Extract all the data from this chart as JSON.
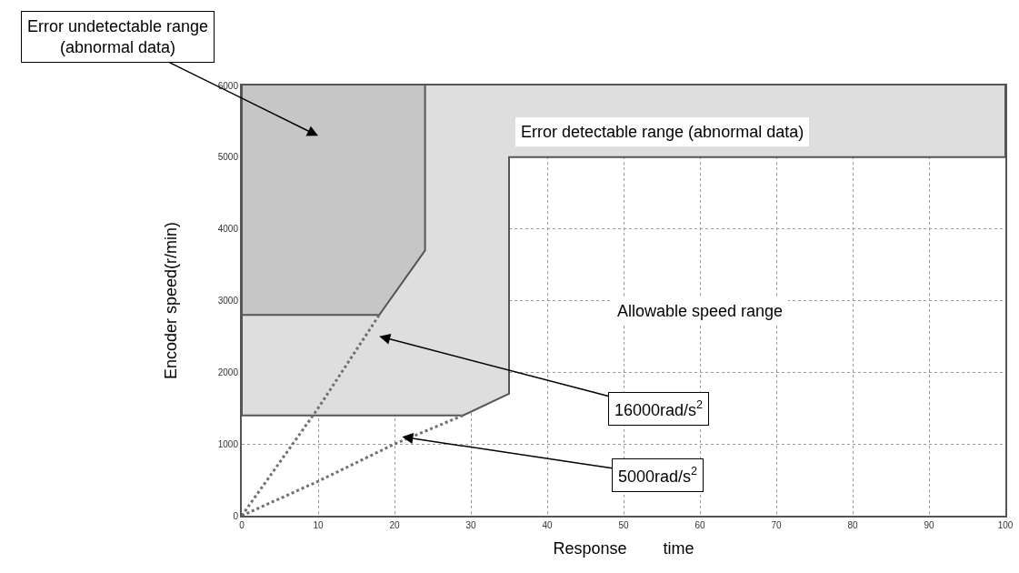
{
  "chart_data": {
    "type": "line",
    "xlabel": "Response        time",
    "ylabel": "Encoder speed(r/min)",
    "xlim": [
      0,
      100
    ],
    "xticks": [
      0,
      10,
      20,
      30,
      40,
      50,
      60,
      70,
      80,
      90,
      100
    ],
    "ylim": [
      0,
      6000
    ],
    "yticks": [
      0,
      1000,
      2000,
      3000,
      4000,
      5000,
      6000
    ],
    "grid": true,
    "marker": "none",
    "series": [
      {
        "type": "area",
        "color": "#dedede",
        "line_style": "solid",
        "x": [
          0,
          0,
          29,
          35,
          35,
          100,
          100
        ],
        "values": [
          6000,
          1400,
          1400,
          1700,
          5000,
          5000,
          6000
        ]
      },
      {
        "type": "area",
        "color": "#c6c6c6",
        "line_style": "solid",
        "x": [
          0,
          0,
          18,
          24,
          24
        ],
        "values": [
          6000,
          2800,
          2800,
          3700,
          6000
        ]
      },
      {
        "color": "#707070",
        "line_style": "dotted",
        "x": [
          0,
          10,
          18
        ],
        "values": [
          0,
          1500,
          2800
        ]
      },
      {
        "color": "#707070",
        "line_style": "dotted",
        "x": [
          0,
          10,
          20,
          29
        ],
        "values": [
          0,
          480,
          1000,
          1400
        ]
      }
    ],
    "annotations": [
      "Error undetectable range\n(abnormal data)",
      "16000rad/s$^{2}$",
      {
        "text": "5000rad/s$^{2}$",
        "x": 21,
        "y": 1100
      },
      "Error detectable range (abnormal data)",
      "Allowable speed range"
    ]
  }
}
